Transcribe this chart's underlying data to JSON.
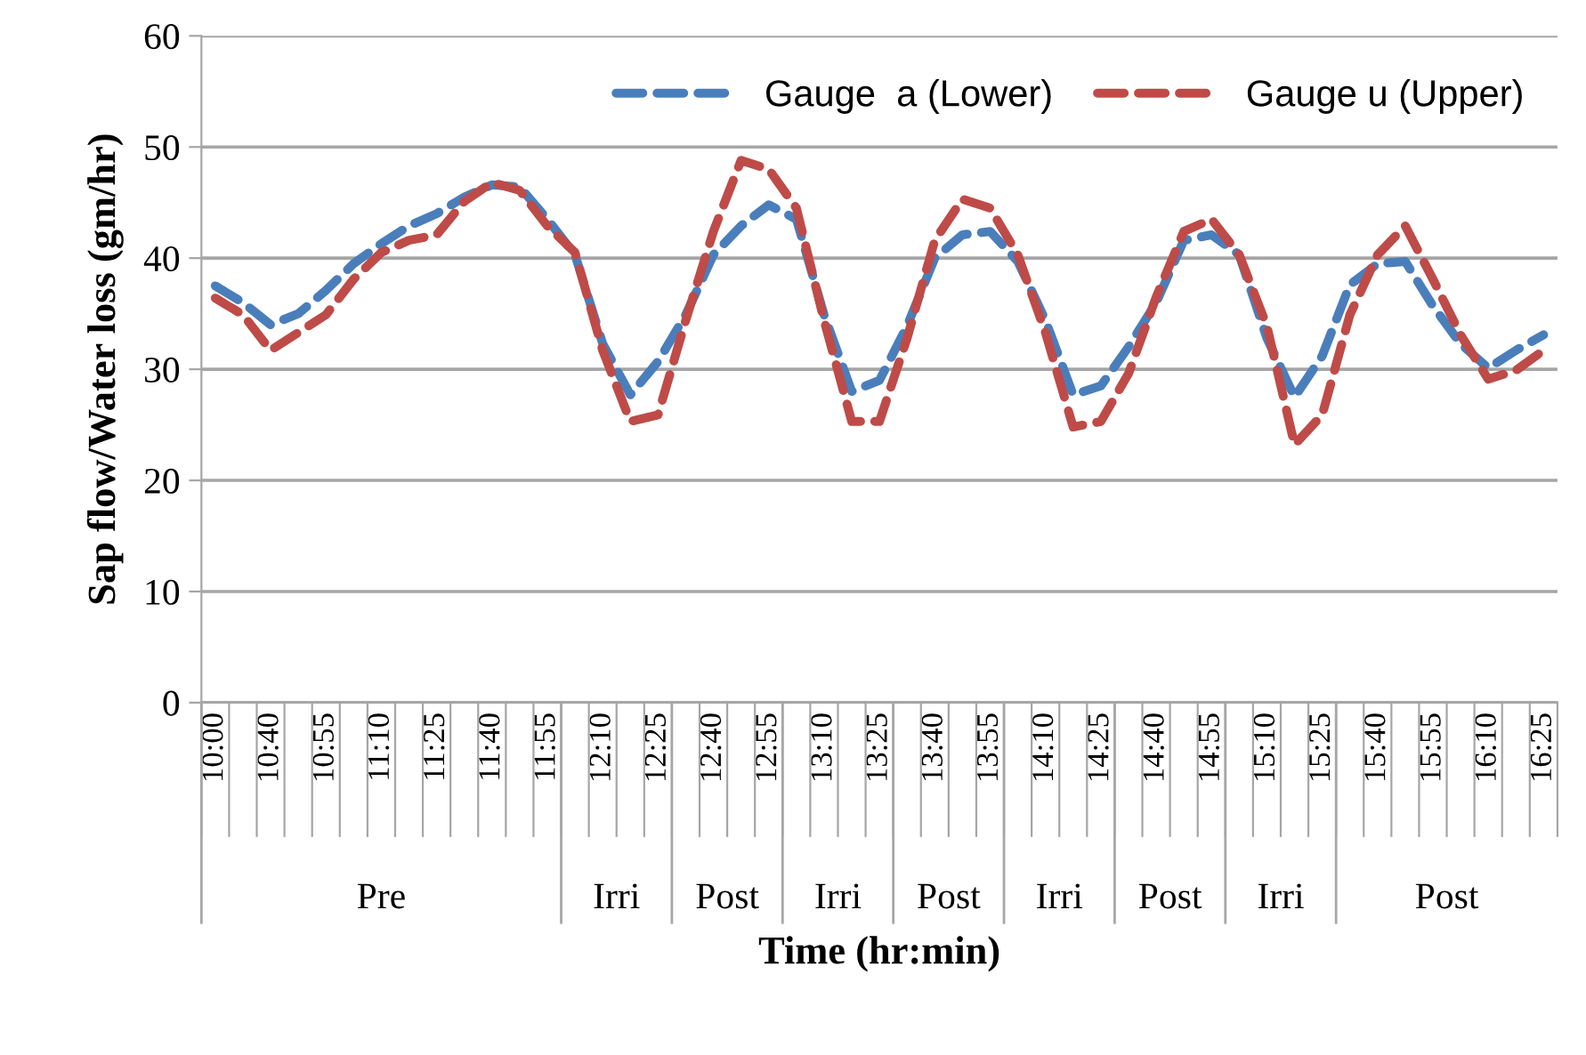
{
  "chart_data": {
    "type": "line",
    "categories": [
      "10:00",
      null,
      "10:40",
      null,
      "10:55",
      null,
      "11:10",
      null,
      "11:25",
      null,
      "11:40",
      null,
      "11:55",
      null,
      "12:10",
      null,
      "12:25",
      null,
      "12:40",
      null,
      "12:55",
      null,
      "13:10",
      null,
      "13:25",
      null,
      "13:40",
      null,
      "13:55",
      null,
      "14:10",
      null,
      "14:25",
      null,
      "14:40",
      null,
      "14:55",
      null,
      "15:10",
      null,
      "15:25",
      null,
      "15:40",
      null,
      "15:55",
      null,
      "16:10",
      null,
      "16:25"
    ],
    "series": [
      {
        "name": "Gauge  a (Lower)",
        "color": "#4a7ebb",
        "values": [
          37.5,
          36,
          34,
          35,
          37.1,
          39.5,
          41.3,
          42.9,
          44,
          45.5,
          46.6,
          46.4,
          43.5,
          40.3,
          32.3,
          27.7,
          30.7,
          34.9,
          40.3,
          42.9,
          44.8,
          43.5,
          34.9,
          28,
          29,
          33.9,
          40,
          42.1,
          42.4,
          39.7,
          34.4,
          27.7,
          28.5,
          32,
          36,
          41.6,
          42.1,
          40.3,
          32.8,
          27.5,
          31.2,
          37.6,
          39.5,
          39.7,
          35.7,
          32.3,
          30.1,
          31.7,
          33.1
        ]
      },
      {
        "name": "Gauge u (Upper)",
        "color": "#be4b48",
        "values": [
          36.4,
          34.9,
          31.7,
          33.3,
          34.9,
          38.1,
          40.5,
          41.6,
          42.1,
          45.1,
          46.8,
          46.1,
          42.9,
          40.5,
          31.7,
          25.3,
          25.9,
          34.4,
          42.4,
          48.8,
          48,
          44.5,
          34.4,
          25.3,
          25.3,
          32.8,
          41.6,
          45.3,
          44.5,
          40.3,
          33.3,
          24.8,
          25.3,
          29.6,
          36.5,
          42.4,
          43.5,
          40.3,
          33.9,
          23.2,
          25.9,
          34.9,
          40.3,
          42.9,
          38.1,
          33.1,
          29.1,
          29.9,
          31.7
        ]
      }
    ],
    "xlabel": "Time (hr:min)",
    "ylabel": "Sap flow/Water loss (gm/hr)",
    "annotations": [
      "Pre",
      "Irri",
      "Post",
      "Irri",
      "Post",
      "Irri",
      "Post",
      "Irri",
      "Post"
    ],
    "ylim": [
      0,
      60
    ],
    "yticks": [
      0,
      10,
      20,
      30,
      40,
      50,
      60
    ],
    "grid": "y",
    "legend": "top right",
    "line_style": "dashed",
    "marker": "none"
  }
}
